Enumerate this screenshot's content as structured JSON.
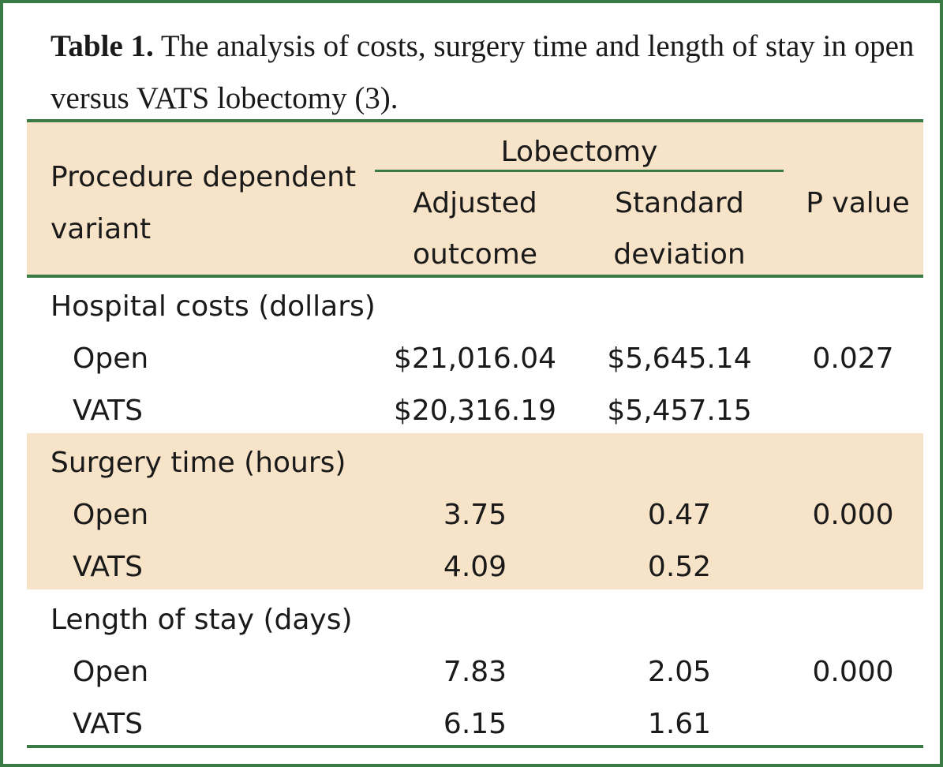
{
  "caption": {
    "label": "Table 1.",
    "text": "The analysis of costs, surgery time and length of stay in open versus VATS lobectomy (3)."
  },
  "header": {
    "col1_line1": "Procedure dependent",
    "col1_line2": "variant",
    "group": "Lobectomy",
    "adjusted_line1": "Adjusted",
    "adjusted_line2": "outcome",
    "sd_line1": "Standard",
    "sd_line2": "deviation",
    "p": "P value"
  },
  "sections": [
    {
      "title": "Hospital costs (dollars)",
      "rows": [
        {
          "label": "Open",
          "adjusted": "$21,016.04",
          "sd": "$5,645.14",
          "p": "0.027"
        },
        {
          "label": "VATS",
          "adjusted": "$20,316.19",
          "sd": "$5,457.15",
          "p": ""
        }
      ]
    },
    {
      "title": "Surgery time (hours)",
      "rows": [
        {
          "label": "Open",
          "adjusted": "3.75",
          "sd": "0.47",
          "p": "0.000"
        },
        {
          "label": "VATS",
          "adjusted": "4.09",
          "sd": "0.52",
          "p": ""
        }
      ]
    },
    {
      "title": "Length of stay (days)",
      "rows": [
        {
          "label": "Open",
          "adjusted": "7.83",
          "sd": "2.05",
          "p": "0.000"
        },
        {
          "label": "VATS",
          "adjusted": "6.15",
          "sd": "1.61",
          "p": ""
        }
      ]
    }
  ],
  "colors": {
    "border": "#3a7a45",
    "band": "#f7e3c8"
  }
}
